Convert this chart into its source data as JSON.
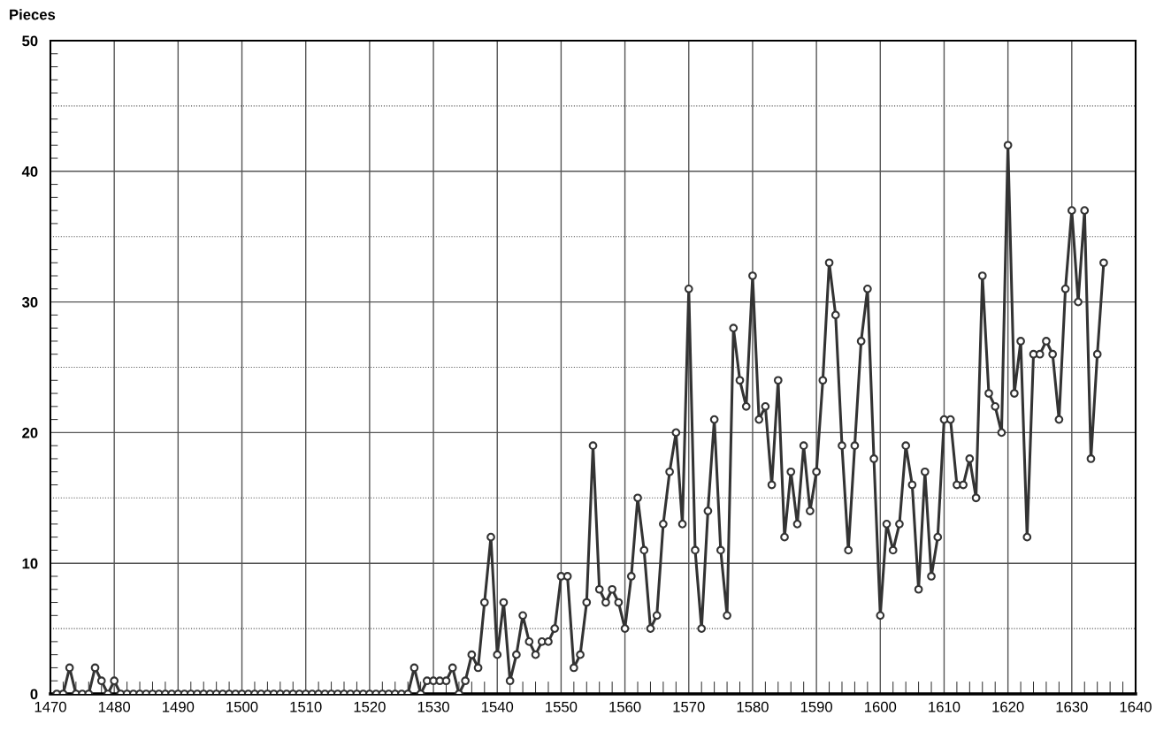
{
  "chart_data": {
    "type": "line",
    "ylabel": "Pieces",
    "x": [
      1471,
      1472,
      1473,
      1474,
      1475,
      1476,
      1477,
      1478,
      1479,
      1480,
      1481,
      1482,
      1483,
      1484,
      1485,
      1486,
      1487,
      1488,
      1489,
      1490,
      1491,
      1492,
      1493,
      1494,
      1495,
      1496,
      1497,
      1498,
      1499,
      1500,
      1501,
      1502,
      1503,
      1504,
      1505,
      1506,
      1507,
      1508,
      1509,
      1510,
      1511,
      1512,
      1513,
      1514,
      1515,
      1516,
      1517,
      1518,
      1519,
      1520,
      1521,
      1522,
      1523,
      1524,
      1525,
      1526,
      1527,
      1528,
      1529,
      1530,
      1531,
      1532,
      1533,
      1534,
      1535,
      1536,
      1537,
      1538,
      1539,
      1540,
      1541,
      1542,
      1543,
      1544,
      1545,
      1546,
      1547,
      1548,
      1549,
      1550,
      1551,
      1552,
      1553,
      1554,
      1555,
      1556,
      1557,
      1558,
      1559,
      1560,
      1561,
      1562,
      1563,
      1564,
      1565,
      1566,
      1567,
      1568,
      1569,
      1570,
      1571,
      1572,
      1573,
      1574,
      1575,
      1576,
      1577,
      1578,
      1579,
      1580,
      1581,
      1582,
      1583,
      1584,
      1585,
      1586,
      1587,
      1588,
      1589,
      1590,
      1591,
      1592,
      1593,
      1594,
      1595,
      1596,
      1597,
      1598,
      1599,
      1600,
      1601,
      1602,
      1603,
      1604,
      1605,
      1606,
      1607,
      1608,
      1609,
      1610,
      1611,
      1612,
      1613,
      1614,
      1615,
      1616,
      1617,
      1618,
      1619,
      1620,
      1621,
      1622,
      1623,
      1624,
      1625,
      1626,
      1627,
      1628,
      1629,
      1630,
      1631,
      1632,
      1633,
      1634,
      1635
    ],
    "series": [
      {
        "color": "#333333",
        "values": [
          0,
          0,
          2,
          0,
          0,
          0,
          2,
          1,
          0,
          1,
          0,
          0,
          0,
          0,
          0,
          0,
          0,
          0,
          0,
          0,
          0,
          0,
          0,
          0,
          0,
          0,
          0,
          0,
          0,
          0,
          0,
          0,
          0,
          0,
          0,
          0,
          0,
          0,
          0,
          0,
          0,
          0,
          0,
          0,
          0,
          0,
          0,
          0,
          0,
          0,
          0,
          0,
          0,
          0,
          0,
          0,
          2,
          0,
          1,
          1,
          1,
          1,
          2,
          0,
          1,
          3,
          2,
          7,
          12,
          3,
          7,
          1,
          3,
          6,
          4,
          3,
          4,
          4,
          5,
          9,
          9,
          2,
          3,
          7,
          19,
          8,
          7,
          8,
          7,
          5,
          9,
          15,
          11,
          5,
          6,
          13,
          17,
          20,
          13,
          31,
          11,
          5,
          14,
          21,
          11,
          6,
          28,
          24,
          22,
          32,
          21,
          22,
          16,
          24,
          12,
          17,
          13,
          19,
          14,
          17,
          24,
          33,
          29,
          19,
          11,
          19,
          27,
          31,
          18,
          6,
          13,
          11,
          13,
          19,
          16,
          8,
          17,
          9,
          12,
          21,
          21,
          16,
          16,
          18,
          15,
          32,
          23,
          22,
          20,
          42,
          23,
          27,
          12,
          26,
          26,
          27,
          26,
          21,
          31,
          37,
          30,
          37,
          18,
          26,
          33
        ]
      }
    ],
    "xlim": [
      1470,
      1640
    ],
    "xticks": [
      1470,
      1480,
      1490,
      1500,
      1510,
      1520,
      1530,
      1540,
      1550,
      1560,
      1570,
      1580,
      1590,
      1600,
      1610,
      1620,
      1630,
      1640
    ],
    "ylim": [
      0,
      50
    ],
    "yticks": [
      0,
      {
        "value": 5,
        "label": null
      },
      10,
      {
        "value": 15,
        "label": null
      },
      20,
      {
        "value": 25,
        "label": null
      },
      30,
      {
        "value": 35,
        "label": null
      },
      40,
      {
        "value": 45,
        "label": null
      },
      50
    ],
    "grid": true,
    "marker": "circle",
    "line_style": "solid"
  }
}
